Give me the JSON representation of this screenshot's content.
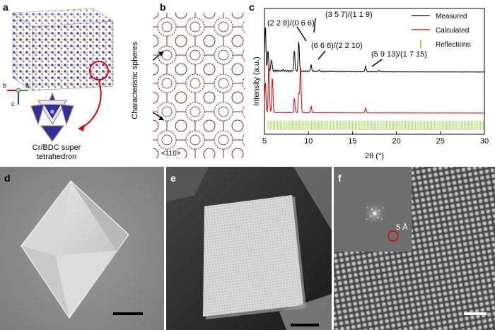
{
  "panel_a": {
    "letter": "a",
    "axes": {
      "b": "b",
      "a": "a",
      "c": "c"
    },
    "caption_line1": "Cr/BDC super",
    "caption_line2": "tetrahedron"
  },
  "panel_b": {
    "letter": "b",
    "side_label": "Characteristic spheres",
    "direction": "<110>"
  },
  "panel_c": {
    "letter": "c",
    "ylabel": "Intensity (a.u.)",
    "xlabel": "2θ (°)",
    "annotations": [
      "(2 2 8)/(0 6 6)",
      "(3 5 7)/(1 1 9)",
      "(6 6 6)/(2 2 10)",
      "(5 9 13)/(1 7 15)"
    ],
    "legend": [
      "Measured",
      "Calculated",
      "Reflections"
    ],
    "colors": {
      "measured": "#000000",
      "calculated": "#e00000",
      "reflections": "#7fd11b"
    }
  },
  "panel_d": {
    "letter": "d"
  },
  "panel_e": {
    "letter": "e"
  },
  "panel_f": {
    "letter": "f",
    "inset_label": "5 Å"
  },
  "chart_data": {
    "type": "line",
    "xlabel": "2θ (°)",
    "ylabel": "Intensity (a.u.)",
    "xlim": [
      5,
      30
    ],
    "xticks": [
      5,
      10,
      15,
      20,
      25,
      30
    ],
    "series": [
      {
        "name": "Measured",
        "x": [
          5.1,
          5.4,
          5.8,
          7.1,
          8.4,
          8.9,
          10.3,
          11.2,
          16.5,
          18.0,
          30
        ],
        "y": [
          9.5,
          4.2,
          2.5,
          0.2,
          4.3,
          6.3,
          1.3,
          0.3,
          1.2,
          0.3,
          0.1
        ]
      },
      {
        "name": "Calculated",
        "x": [
          5.1,
          5.5,
          5.9,
          8.4,
          8.9,
          9.1,
          10.3,
          16.5,
          30
        ],
        "y": [
          5.0,
          8.2,
          5.8,
          2.4,
          3.2,
          7.5,
          1.0,
          0.8,
          0.0
        ]
      }
    ],
    "legend_position": "top-right"
  }
}
